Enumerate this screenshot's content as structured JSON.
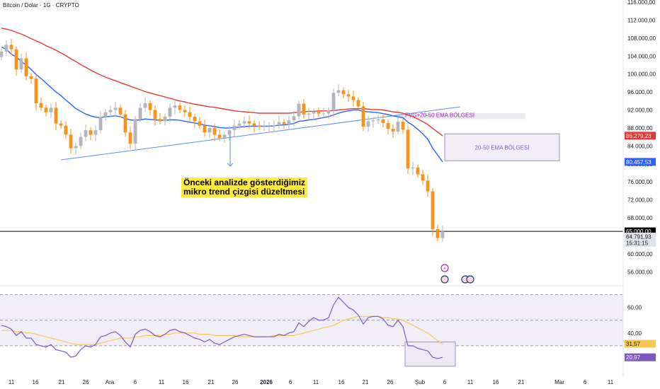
{
  "header": {
    "title": "Bitcoin / Dolar · 1G · CRYPTO"
  },
  "annotation": {
    "text": "Önceki analizde gösterdiğimiz\nmikro trend çizgisi düzeltmesi"
  },
  "zones": {
    "upper_label": "FVG+20-50 EMA BÖLGESİ",
    "lower_label": "20-50 EMA BÖLGESİ"
  },
  "colors": {
    "up": "#b2b5be",
    "down": "#f7931a",
    "ema20": "#2962ff",
    "ema50": "#e53935",
    "rsi": "#7e57c2",
    "rsi_ma": "#f9c74f",
    "trendline": "#5b8def"
  },
  "chart_data": [
    {
      "type": "candlestick",
      "title": "Bitcoin / Dolar · 1G · CRYPTO",
      "x_tick_labels": [
        "11",
        "16",
        "21",
        "26",
        "Ara",
        "6",
        "11",
        "16",
        "21",
        "26",
        "2026",
        "6",
        "11",
        "16",
        "21",
        "26",
        "Şub",
        "6",
        "11",
        "16",
        "21",
        "Mar",
        "6",
        "11"
      ],
      "y_ticks": [
        "116.000,00",
        "112.000,00",
        "108.000,00",
        "104.000,00",
        "100.000,00",
        "96.000,00",
        "92.000,00",
        "88.000,00",
        "84.000,00",
        "80.000,00",
        "76.000,00",
        "72.000,00",
        "68.000,00",
        "60.000,00",
        "56.000,00"
      ],
      "ylim": [
        54000,
        116000
      ],
      "price_labels": [
        {
          "label": "86.279,23",
          "value": 86279.23,
          "color": "#e53935"
        },
        {
          "label": "80.457,53",
          "value": 80457.53,
          "color": "#2962ff"
        },
        {
          "label": "65.000,00",
          "value": 65000,
          "color": "#000000"
        },
        {
          "label": "64.791,93",
          "sub": "15:31:15",
          "value": 64791.93,
          "color": "#b2b5be"
        }
      ],
      "horizontal_line": 65000,
      "closes": [
        105000,
        106500,
        105500,
        101000,
        103500,
        99500,
        99000,
        93500,
        92500,
        91500,
        92500,
        89000,
        88500,
        86500,
        83500,
        84000,
        86000,
        87500,
        86500,
        87500,
        90500,
        91500,
        92000,
        92500,
        91000,
        87000,
        84500,
        90000,
        92500,
        93500,
        92000,
        90000,
        89500,
        90500,
        92500,
        93000,
        92000,
        91500,
        90500,
        89500,
        88500,
        87000,
        88000,
        86500,
        85800,
        86500,
        87500,
        88500,
        89000,
        89500,
        89000,
        88500,
        88300,
        88400,
        88600,
        88600,
        89300,
        88800,
        89700,
        90600,
        93400,
        91000,
        91200,
        91600,
        91200,
        91200,
        91900,
        95800,
        96400,
        95500,
        95000,
        94200,
        92800,
        88300,
        89500,
        89700,
        89900,
        89100,
        87800,
        87200,
        89400,
        87600,
        79000,
        79200,
        77700,
        76300,
        73900,
        65500,
        63500,
        65000
      ],
      "series": [
        {
          "name": "EMA 20",
          "values": [
            106000,
            105500,
            104400,
            103800,
            102800,
            102000,
            101000,
            99900,
            99000,
            98000,
            97000,
            96000,
            95200,
            94200,
            93300,
            92300,
            91700,
            91100,
            90700,
            90400,
            90300,
            90500,
            90600,
            90700,
            90500,
            90100,
            89800,
            89700,
            89800,
            90000,
            89900,
            89800,
            89700,
            89700,
            89800,
            89800,
            89700,
            89500,
            89300,
            89100,
            88900,
            88600,
            88500,
            88300,
            88100,
            88000,
            88000,
            88100,
            88200,
            88300,
            88400,
            88400,
            88400,
            88400,
            88400,
            88500,
            88600,
            88700,
            88800,
            89000,
            89500,
            89600,
            89800,
            89900,
            90100,
            90300,
            90500,
            90900,
            91300,
            91600,
            91800,
            92000,
            92000,
            91700,
            91600,
            91500,
            91400,
            91200,
            91000,
            90700,
            90500,
            90300,
            89300,
            88600,
            87700,
            86700,
            85500,
            83500,
            82000,
            80457.53
          ]
        },
        {
          "name": "EMA 50",
          "values": [
            110200,
            110000,
            109700,
            109300,
            108900,
            108400,
            107900,
            107400,
            106900,
            106300,
            105800,
            105300,
            104700,
            104100,
            103400,
            102800,
            102100,
            101500,
            100900,
            100300,
            99800,
            99300,
            98900,
            98500,
            98100,
            97700,
            97300,
            96900,
            96500,
            96100,
            95800,
            95500,
            95200,
            94900,
            94600,
            94300,
            94000,
            93800,
            93500,
            93300,
            93100,
            92900,
            92700,
            92600,
            92400,
            92200,
            92000,
            91800,
            91700,
            91600,
            91500,
            91400,
            91300,
            91300,
            91300,
            91300,
            91300,
            91300,
            91300,
            91400,
            91500,
            91600,
            91700,
            91700,
            91800,
            91800,
            91800,
            91900,
            92000,
            92100,
            92200,
            92300,
            92300,
            92300,
            92200,
            92100,
            92100,
            92000,
            91800,
            91600,
            91500,
            91300,
            90900,
            90500,
            90000,
            89400,
            88800,
            87900,
            87100,
            86279.23
          ]
        }
      ]
    },
    {
      "type": "line",
      "title": "RSI",
      "y_ticks": [
        "60,00",
        "40,00"
      ],
      "ylim": [
        10,
        72
      ],
      "levels": [
        70,
        50,
        30
      ],
      "value_labels": [
        {
          "label": "31,57",
          "value": 31.57,
          "color": "#f9c74f"
        },
        {
          "label": "20,97",
          "value": 20.97,
          "color": "#7e57c2"
        }
      ],
      "series": [
        {
          "name": "RSI",
          "values": [
            46,
            45,
            43,
            38,
            41,
            36,
            36,
            31,
            30,
            29,
            31,
            27,
            26,
            25,
            21,
            22,
            27,
            30,
            29,
            31,
            37,
            38,
            40,
            41,
            38,
            33,
            29,
            39,
            42,
            43,
            41,
            38,
            37,
            39,
            42,
            43,
            41,
            40,
            38,
            36,
            35,
            33,
            35,
            32,
            31,
            33,
            35,
            37,
            38,
            39,
            38,
            37,
            37,
            37,
            37,
            37,
            39,
            38,
            40,
            41,
            48,
            45,
            49,
            52,
            50,
            50,
            52,
            62,
            68,
            64,
            60,
            58,
            54,
            47,
            52,
            53,
            53,
            51,
            46,
            45,
            50,
            45,
            30,
            30,
            28,
            27,
            26,
            21,
            20,
            20.97
          ]
        },
        {
          "name": "RSI MA",
          "values": [
            42,
            42,
            42,
            41,
            41,
            40,
            40,
            39,
            38,
            37,
            36,
            35,
            34,
            33,
            32,
            31,
            31,
            31,
            31,
            31,
            32,
            33,
            34,
            35,
            36,
            36,
            36,
            37,
            37,
            38,
            38,
            38,
            38,
            39,
            39,
            40,
            40,
            40,
            40,
            40,
            39,
            39,
            39,
            38,
            38,
            38,
            38,
            38,
            37,
            37,
            37,
            37,
            37,
            37,
            37,
            38,
            38,
            38,
            38,
            38,
            39,
            40,
            41,
            42,
            43,
            44,
            45,
            46,
            48,
            50,
            51,
            52,
            53,
            53,
            53,
            53,
            53,
            52,
            52,
            51,
            51,
            50,
            48,
            46,
            44,
            42,
            40,
            37,
            34,
            31.57
          ]
        }
      ]
    }
  ]
}
